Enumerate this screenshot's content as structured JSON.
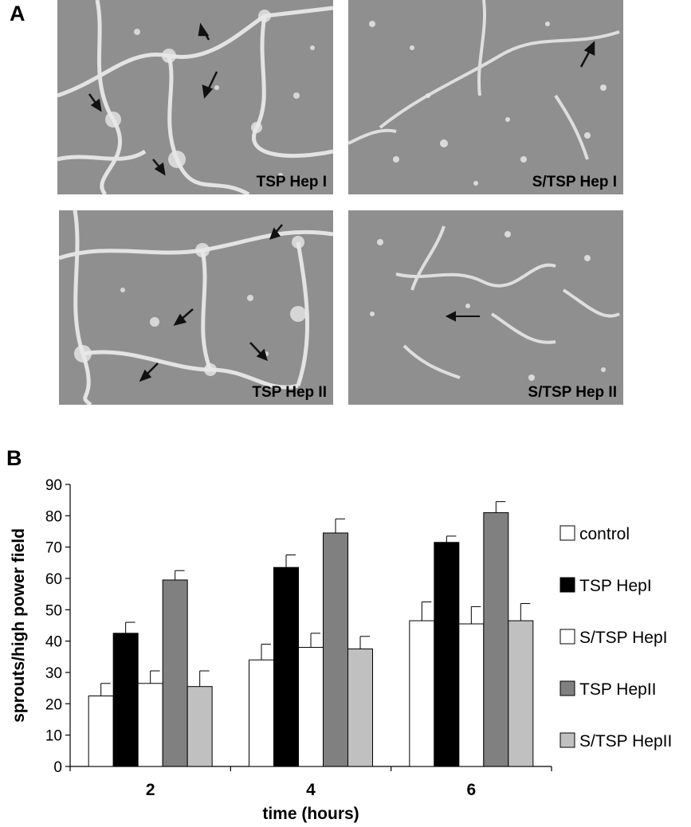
{
  "figure": {
    "panel_a_letter": "A",
    "panel_b_letter": "B",
    "micrographs": [
      {
        "label": "TSP Hep I"
      },
      {
        "label": "S/TSP Hep I"
      },
      {
        "label": "TSP Hep II"
      },
      {
        "label": "S/TSP Hep II"
      }
    ]
  },
  "chart_data": {
    "type": "bar",
    "categories": [
      "2",
      "4",
      "6"
    ],
    "xlabel": "time (hours)",
    "ylabel": "sprouts/high power field",
    "ylim": [
      0,
      90
    ],
    "yticks": [
      0,
      10,
      20,
      30,
      40,
      50,
      60,
      70,
      80,
      90
    ],
    "grid": false,
    "legend_position": "right",
    "series": [
      {
        "name": "control",
        "color": "#ffffff",
        "values": [
          22.5,
          34,
          46.5
        ],
        "errors": [
          4,
          5,
          6
        ]
      },
      {
        "name": "TSP HepI",
        "color": "#000000",
        "values": [
          42.5,
          63.5,
          71.5
        ],
        "errors": [
          3.5,
          4,
          2
        ]
      },
      {
        "name": "S/TSP HepI",
        "color": "#ffffff",
        "values": [
          26.5,
          38,
          45.5
        ],
        "errors": [
          4,
          4.5,
          5.5
        ]
      },
      {
        "name": "TSP HepII",
        "color": "#808080",
        "values": [
          59.5,
          74.5,
          81
        ],
        "errors": [
          3,
          4.5,
          3.5
        ]
      },
      {
        "name": "S/TSP HepII",
        "color": "#c0c0c0",
        "values": [
          25.5,
          37.5,
          46.5
        ],
        "errors": [
          5,
          4,
          5.5
        ]
      }
    ]
  }
}
